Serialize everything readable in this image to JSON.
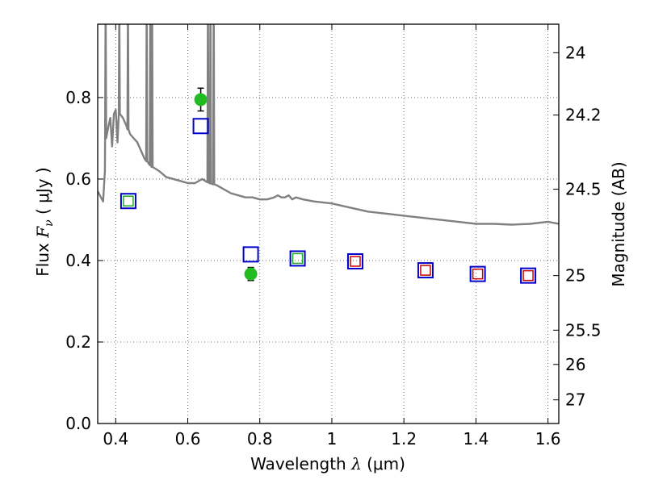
{
  "chart_data": {
    "type": "scatter",
    "xlabel_prefix": "Wavelength  ",
    "xlabel_symbol": "λ",
    "xlabel_suffix": " (μm)",
    "ylabel_prefix": "Flux  ",
    "ylabel_symbol": "F",
    "ylabel_subscript": "ν",
    "ylabel_suffix": "  ( μJy )",
    "y2label": "Magnitude (AB)",
    "xlim": [
      0.35,
      1.63
    ],
    "ylim": [
      0.0,
      0.98
    ],
    "grid": true,
    "x_ticks": [
      0.4,
      0.6,
      0.8,
      1.0,
      1.2,
      1.4,
      1.6
    ],
    "x_tick_labels": [
      "0.4",
      "0.6",
      "0.8",
      "1",
      "1.2",
      "1.4",
      "1.6"
    ],
    "y_ticks": [
      0.0,
      0.2,
      0.4,
      0.6,
      0.8
    ],
    "y_tick_labels": [
      "0.0",
      "0.2",
      "0.4",
      "0.6",
      "0.8"
    ],
    "y2_ticks": [
      {
        "label": "24",
        "flux": 0.91
      },
      {
        "label": "24.2",
        "flux": 0.757
      },
      {
        "label": "24.5",
        "flux": 0.575
      },
      {
        "label": "25",
        "flux": 0.363
      },
      {
        "label": "25.5",
        "flux": 0.229
      },
      {
        "label": "26",
        "flux": 0.145
      },
      {
        "label": "27",
        "flux": 0.058
      }
    ],
    "colors": {
      "model": "#808080",
      "observed": "#22bb22",
      "square_blue": "#0000cc",
      "square_green": "#22aa22",
      "square_red": "#cc0000",
      "grid": "#555555"
    },
    "model_spectrum": {
      "name": "model",
      "x": [
        0.35,
        0.365,
        0.37,
        0.372,
        0.38,
        0.385,
        0.39,
        0.395,
        0.4,
        0.405,
        0.41,
        0.42,
        0.43,
        0.44,
        0.45,
        0.46,
        0.47,
        0.48,
        0.49,
        0.5,
        0.52,
        0.54,
        0.56,
        0.58,
        0.6,
        0.62,
        0.64,
        0.66,
        0.68,
        0.7,
        0.72,
        0.74,
        0.76,
        0.78,
        0.8,
        0.82,
        0.84,
        0.85,
        0.86,
        0.87,
        0.88,
        0.89,
        0.9,
        0.92,
        0.95,
        1.0,
        1.05,
        1.1,
        1.15,
        1.2,
        1.25,
        1.3,
        1.35,
        1.4,
        1.45,
        1.5,
        1.55,
        1.6,
        1.63
      ],
      "y": [
        0.57,
        0.545,
        0.62,
        0.7,
        0.73,
        0.75,
        0.68,
        0.76,
        0.77,
        0.69,
        0.76,
        0.75,
        0.73,
        0.71,
        0.7,
        0.69,
        0.67,
        0.65,
        0.64,
        0.63,
        0.62,
        0.605,
        0.6,
        0.595,
        0.59,
        0.59,
        0.6,
        0.59,
        0.585,
        0.575,
        0.565,
        0.56,
        0.555,
        0.555,
        0.55,
        0.55,
        0.555,
        0.56,
        0.555,
        0.555,
        0.56,
        0.55,
        0.555,
        0.55,
        0.545,
        0.54,
        0.53,
        0.52,
        0.515,
        0.51,
        0.505,
        0.5,
        0.495,
        0.49,
        0.49,
        0.488,
        0.49,
        0.495,
        0.49
      ]
    },
    "emission_lines": [
      {
        "x": 0.372,
        "peak": 0.98
      },
      {
        "x": 0.41,
        "peak": 0.98
      },
      {
        "x": 0.434,
        "peak": 0.98
      },
      {
        "x": 0.486,
        "peak": 0.98
      },
      {
        "x": 0.496,
        "peak": 0.98
      },
      {
        "x": 0.501,
        "peak": 0.98
      },
      {
        "x": 0.656,
        "peak": 0.98
      },
      {
        "x": 0.663,
        "peak": 0.98
      },
      {
        "x": 0.672,
        "peak": 0.98
      }
    ],
    "observed_points": [
      {
        "x": 0.636,
        "y": 0.795,
        "err": 0.028
      },
      {
        "x": 0.775,
        "y": 0.367,
        "err": 0.016
      }
    ],
    "blue_squares": [
      {
        "x": 0.435,
        "y": 0.546
      },
      {
        "x": 0.636,
        "y": 0.73
      },
      {
        "x": 0.775,
        "y": 0.415
      },
      {
        "x": 0.905,
        "y": 0.405
      },
      {
        "x": 1.065,
        "y": 0.398
      },
      {
        "x": 1.26,
        "y": 0.376
      },
      {
        "x": 1.405,
        "y": 0.367
      },
      {
        "x": 1.545,
        "y": 0.363
      }
    ],
    "green_squares": [
      {
        "x": 0.435,
        "y": 0.546
      },
      {
        "x": 0.905,
        "y": 0.405
      }
    ],
    "red_squares": [
      {
        "x": 1.065,
        "y": 0.398
      },
      {
        "x": 1.26,
        "y": 0.376
      },
      {
        "x": 1.405,
        "y": 0.367
      },
      {
        "x": 1.545,
        "y": 0.363
      }
    ]
  }
}
